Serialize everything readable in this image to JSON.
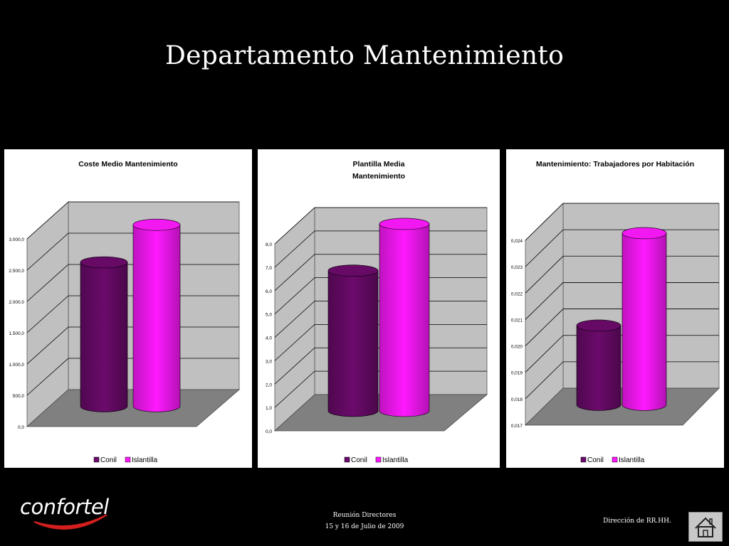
{
  "slide_title": "Departamento Mantenimiento",
  "legend_labels": [
    "Conil",
    "Islantilla"
  ],
  "colors": {
    "conil": "#6b0a6b",
    "islantilla": "#ff19ff",
    "panel_floor": "#808080",
    "panel_wall": "#c0c0c0"
  },
  "chart_data": [
    {
      "type": "bar",
      "title": "Coste Medio Mantenimiento",
      "categories": [
        "Conil",
        "Islantilla"
      ],
      "values": [
        2300,
        2900
      ],
      "ylim": [
        0,
        3000
      ],
      "yticks": [
        "0,0",
        "500,0",
        "1.000,0",
        "1.500,0",
        "2.000,0",
        "2.500,0",
        "3.000,0"
      ],
      "grid": true,
      "legend": "bottom"
    },
    {
      "type": "bar",
      "title_lines": [
        "Plantilla Media",
        "Mantenimiento"
      ],
      "categories": [
        "Conil",
        "Islantilla"
      ],
      "values": [
        6.0,
        8.0
      ],
      "ylim": [
        0,
        8
      ],
      "yticks": [
        "0,0",
        "1,0",
        "2,0",
        "3,0",
        "4,0",
        "5,0",
        "6,0",
        "7,0",
        "8,0"
      ],
      "grid": true,
      "legend": "bottom"
    },
    {
      "type": "bar",
      "title": "Mantenimiento: Trabajadores por Habitación",
      "categories": [
        "Conil",
        "Islantilla"
      ],
      "values": [
        0.02,
        0.0235
      ],
      "ylim": [
        0.017,
        0.024
      ],
      "yticks": [
        "0,017",
        "0,018",
        "0,019",
        "0,020",
        "0,021",
        "0,022",
        "0,023",
        "0,024"
      ],
      "grid": true,
      "legend": "bottom"
    }
  ],
  "footer": {
    "line1": "Reunión Directores",
    "line2": "15 y 16 de Julio de 2009",
    "right": "Dirección de RR.HH.",
    "logo_text": "confortel",
    "home_icon": "home-icon"
  }
}
